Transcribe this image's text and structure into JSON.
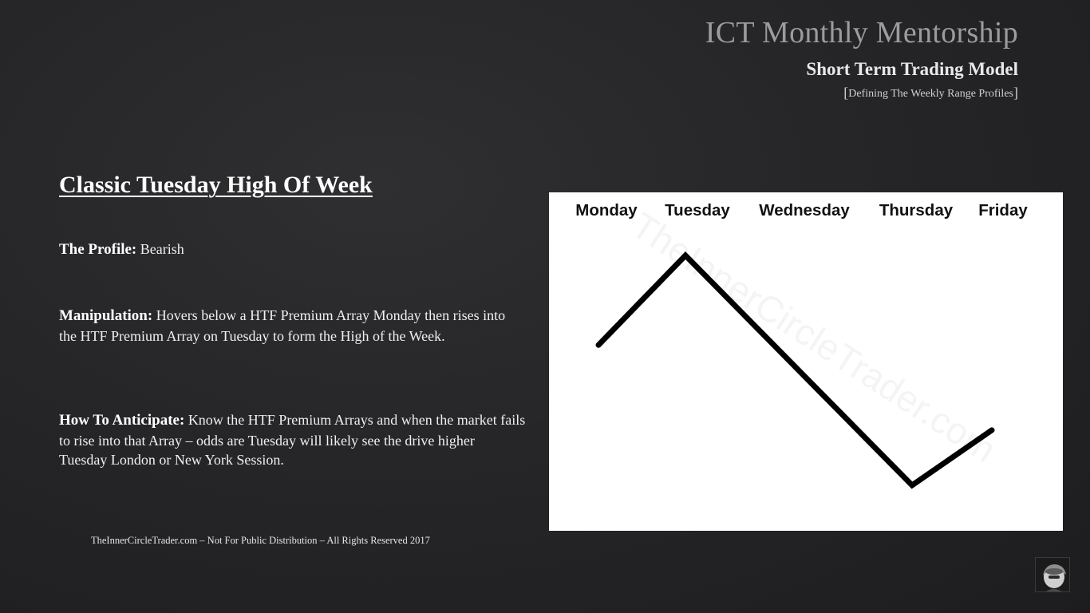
{
  "header": {
    "title": "ICT Monthly Mentorship",
    "subtitle": "Short Term Trading Model",
    "tag_open": "[",
    "tag": "Defining The Weekly Range Profiles",
    "tag_close": "]"
  },
  "slide": {
    "title": "Classic Tuesday High Of Week",
    "profile_label": "The Profile:",
    "profile_text": "Bearish",
    "manipulation_label": "Manipulation:",
    "manipulation_text": "Hovers below a HTF Premium Array Monday then rises into the HTF Premium Array on Tuesday to form the High of the Week.",
    "anticipate_label": "How To Anticipate:",
    "anticipate_text": "Know the HTF Premium Arrays and when the market fails to rise into that Array – odds are Tuesday will likely see the drive higher Tuesday London or New York Session."
  },
  "footer": {
    "text": "TheInnerCircleTrader.com – Not For Public Distribution – All Rights Reserved 2017"
  },
  "chart": {
    "days": [
      "Monday",
      "Tuesday",
      "Wednesday",
      "Thursday",
      "Friday"
    ],
    "watermark": "TheInnerCircleTrader.com",
    "line_color": "#000000",
    "path_levels": [
      {
        "position": "Monday",
        "level": 0.61
      },
      {
        "position": "Tuesday",
        "level": 1.0
      },
      {
        "position": "Thursday",
        "level": 0.0
      },
      {
        "position": "Friday",
        "level": 0.24
      }
    ]
  },
  "presenter": {
    "icon": "presenter-avatar-icon"
  }
}
